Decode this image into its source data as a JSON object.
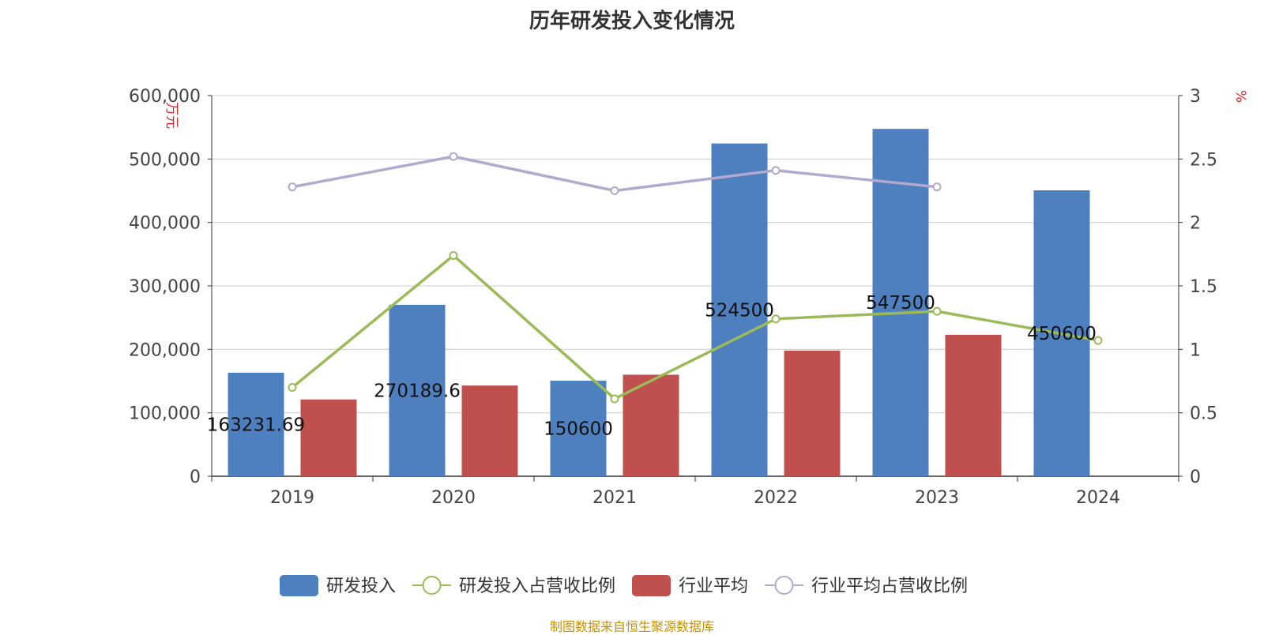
{
  "title": "历年研发投入变化情况",
  "source": "制图数据来自恒生聚源数据库",
  "chart_data": {
    "type": "bar",
    "categories": [
      "2019",
      "2020",
      "2021",
      "2022",
      "2023",
      "2024"
    ],
    "left_axis": {
      "label": "万元",
      "min": 0,
      "max": 600000,
      "ticks": [
        0,
        100000,
        200000,
        300000,
        400000,
        500000,
        600000
      ],
      "tick_labels": [
        "0",
        "100,000",
        "200,000",
        "300,000",
        "400,000",
        "500,000",
        "600,000"
      ]
    },
    "right_axis": {
      "label": "%",
      "min": 0,
      "max": 3,
      "ticks": [
        0,
        0.5,
        1,
        1.5,
        2,
        2.5,
        3
      ],
      "tick_labels": [
        "0",
        "0.5",
        "1",
        "1.5",
        "2",
        "2.5",
        "3"
      ]
    },
    "grid": true,
    "legend_position": "bottom",
    "series": [
      {
        "name": "研发投入",
        "kind": "bar",
        "axis": "left",
        "color": "#4e7fbe",
        "values": [
          163231.69,
          270189.6,
          150600,
          524500,
          547500,
          450600
        ],
        "labels": [
          "163231.69",
          "270189.6",
          "150600",
          "524500",
          "547500",
          "450600"
        ]
      },
      {
        "name": "研发投入占营收比例",
        "kind": "line",
        "axis": "right",
        "color": "#9bbb59",
        "values": [
          0.7,
          1.74,
          0.61,
          1.24,
          1.3,
          1.07
        ]
      },
      {
        "name": "行业平均",
        "kind": "bar",
        "axis": "left",
        "color": "#c0504d",
        "values": [
          121000,
          143000,
          160000,
          198000,
          223000,
          null
        ]
      },
      {
        "name": "行业平均占营收比例",
        "kind": "line",
        "axis": "right",
        "color": "#b3a8d0",
        "values": [
          2.28,
          2.52,
          2.25,
          2.41,
          2.28,
          null
        ]
      }
    ]
  }
}
